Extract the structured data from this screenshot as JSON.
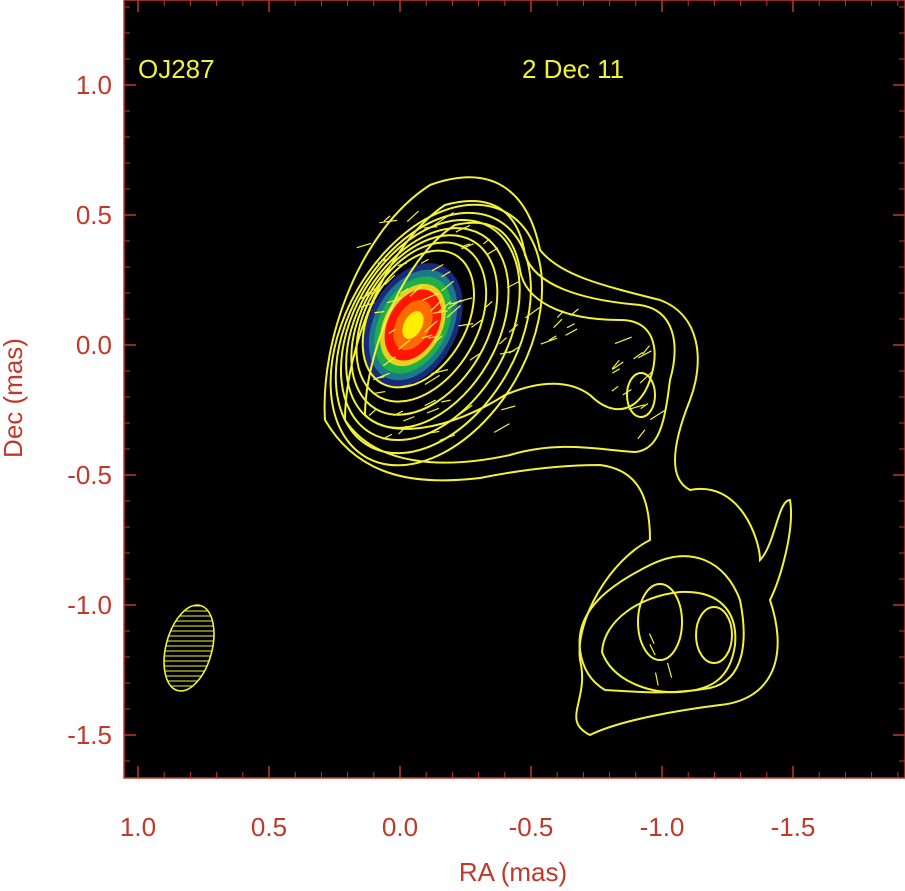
{
  "chart_data": {
    "type": "contour",
    "source_name": "OJ287",
    "epoch": "2 Dec 11",
    "xlabel": "RA (mas)",
    "ylabel": "Dec (mas)",
    "xlim": [
      1.0,
      -1.95
    ],
    "ylim": [
      -1.65,
      1.3
    ],
    "x_ticks": [
      1.0,
      0.5,
      0.0,
      -0.5,
      -1.0,
      -1.5
    ],
    "x_tick_labels": [
      "1.0",
      "0.5",
      "0.0",
      "-0.5",
      "-1.0",
      "-1.5"
    ],
    "y_ticks": [
      1.0,
      0.5,
      0.0,
      -0.5,
      -1.0,
      -1.5
    ],
    "y_tick_labels": [
      "1.0",
      "0.5",
      "0.0",
      "-0.5",
      "-1.0",
      "-1.5"
    ],
    "core": {
      "ra": -0.07,
      "dec": 0.1
    },
    "components": [
      {
        "ra": -0.97,
        "dec": -0.2
      },
      {
        "ra": -1.1,
        "dec": -1.05
      },
      {
        "ra": -1.25,
        "dec": -1.1
      }
    ],
    "beam": {
      "ra": 0.8,
      "dec": -1.2
    },
    "colors": {
      "background": "#000000",
      "axes": "#c0392b",
      "contour": "#f2f23a",
      "core_peak": "#ffee00",
      "core_mid": "#ff1500",
      "core_outer": "#1a2a7a"
    }
  }
}
